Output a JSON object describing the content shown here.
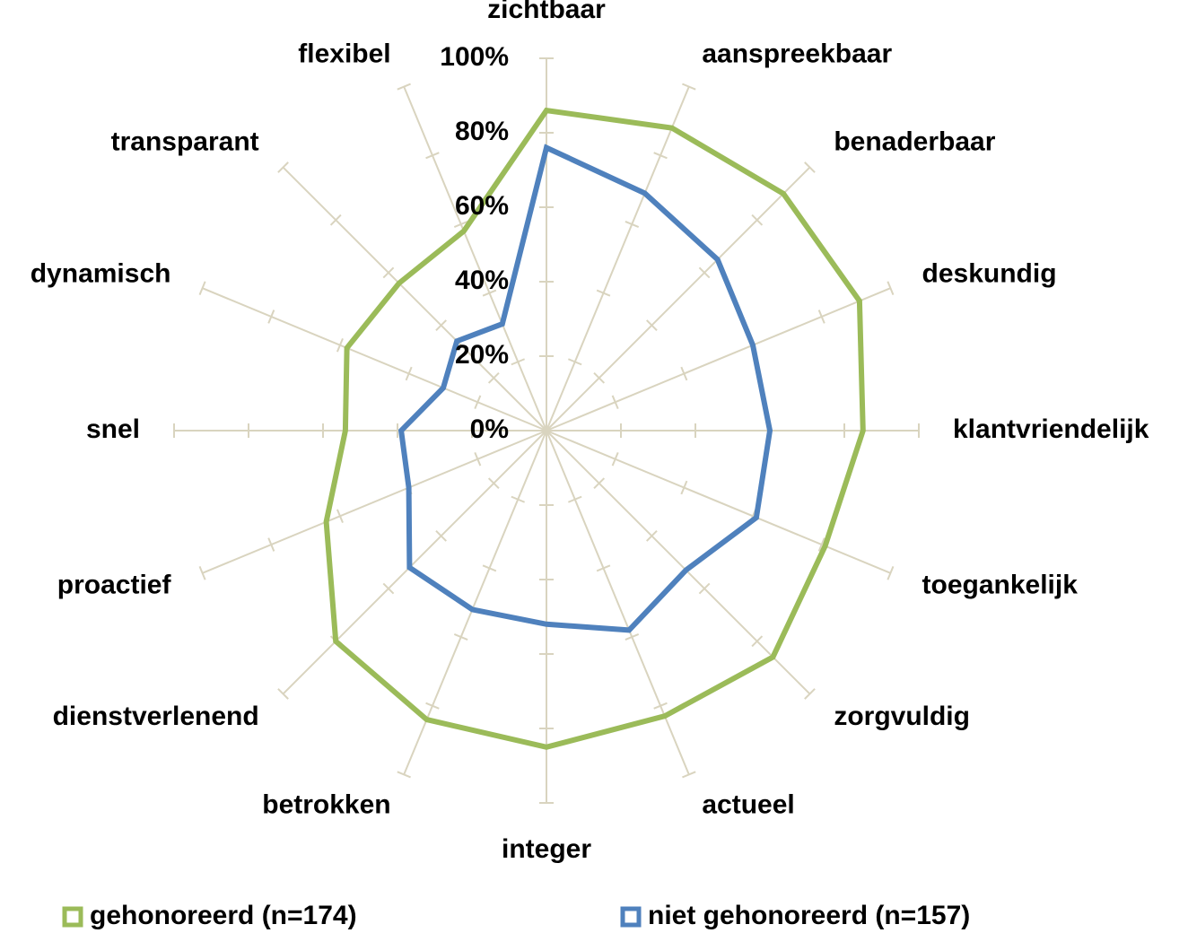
{
  "chart_data": {
    "type": "radar",
    "categories": [
      "zichtbaar",
      "aanspreekbaar",
      "benaderbaar",
      "deskundig",
      "klantvriendelijk",
      "toegankelijk",
      "zorgvuldig",
      "actueel",
      "integer",
      "betrokken",
      "dienstverlenend",
      "proactief",
      "snel",
      "dynamisch",
      "transparant",
      "flexibel"
    ],
    "series": [
      {
        "name": "gehonoreerd (n=174)",
        "color": "#9bbb59",
        "values": [
          86,
          88,
          90,
          91,
          85,
          81,
          86,
          83,
          85,
          84,
          80,
          64,
          54,
          58,
          56,
          58
        ]
      },
      {
        "name": "niet gehonoreerd (n=157)",
        "color": "#4f81bd",
        "values": [
          76,
          69,
          65,
          60,
          60,
          61,
          53,
          58,
          52,
          52,
          52,
          40,
          39,
          30,
          34,
          31
        ]
      }
    ],
    "rlim": [
      0,
      100
    ],
    "rticks": [
      {
        "value": 0,
        "label": "0%"
      },
      {
        "value": 20,
        "label": "20%"
      },
      {
        "value": 40,
        "label": "40%"
      },
      {
        "value": 60,
        "label": "60%"
      },
      {
        "value": 80,
        "label": "80%"
      },
      {
        "value": 100,
        "label": "100%"
      }
    ],
    "grid": true,
    "legend": "bottom"
  }
}
